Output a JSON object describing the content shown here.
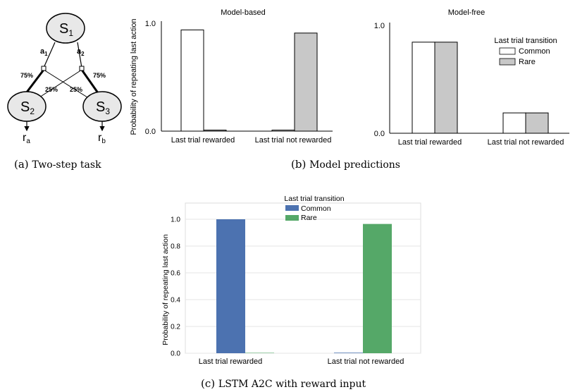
{
  "task_diagram": {
    "states": {
      "s1": "S",
      "s1_sub": "1",
      "s2": "S",
      "s2_sub": "2",
      "s3": "S",
      "s3_sub": "3"
    },
    "actions": {
      "a1": "a",
      "a1_sub": "1",
      "a2": "a",
      "a2_sub": "2"
    },
    "probs": {
      "left_common": "75%",
      "left_rare": "25%",
      "right_rare": "25%",
      "right_common": "75%"
    },
    "rewards": {
      "ra": "r",
      "ra_sub": "a",
      "rb": "r",
      "rb_sub": "b"
    }
  },
  "captions": {
    "a_label": "(a)",
    "a_text": "Two-step task",
    "b_label": "(b)",
    "b_text": "Model predictions",
    "c_label": "(c)",
    "c_text": "LSTM A2C with reward input"
  },
  "colors": {
    "common_white": "#ffffff",
    "rare_gray": "#c8c8c8",
    "common_blue": "#4c72b0",
    "rare_green": "#55a868"
  },
  "chart_data": [
    {
      "type": "bar",
      "title": "Model-based",
      "ylabel": "Probability of repeating last action",
      "categories": [
        "Last trial rewarded",
        "Last trial not rewarded"
      ],
      "series": [
        {
          "name": "Common",
          "values": [
            0.97,
            0.01
          ]
        },
        {
          "name": "Rare",
          "values": [
            0.01,
            0.94
          ]
        }
      ],
      "ylim": [
        0,
        1
      ],
      "yticks": [
        "0.0",
        "1.0"
      ]
    },
    {
      "type": "bar",
      "title": "Model-free",
      "categories": [
        "Last trial rewarded",
        "Last trial not rewarded"
      ],
      "series": [
        {
          "name": "Common",
          "values": [
            0.85,
            0.19
          ]
        },
        {
          "name": "Rare",
          "values": [
            0.85,
            0.19
          ]
        }
      ],
      "ylim": [
        0,
        1
      ],
      "yticks": [
        "0.0",
        "1.0"
      ],
      "legend": {
        "title": "Last trial transition",
        "entries": [
          "Common",
          "Rare"
        ],
        "position": "top-right"
      }
    },
    {
      "type": "bar",
      "ylabel": "Probability of repeating last action",
      "categories": [
        "Last trial rewarded",
        "Last trial not rewarded"
      ],
      "series": [
        {
          "name": "Common",
          "values": [
            1.0,
            0.004
          ]
        },
        {
          "name": "Rare",
          "values": [
            0.003,
            0.965
          ]
        }
      ],
      "ylim": [
        0,
        1.06
      ],
      "yticks": [
        "0.0",
        "0.2",
        "0.4",
        "0.6",
        "0.8",
        "1.0"
      ],
      "grid": true,
      "legend": {
        "title": "Last trial transition",
        "entries": [
          "Common",
          "Rare"
        ],
        "position": "top-center"
      }
    }
  ]
}
